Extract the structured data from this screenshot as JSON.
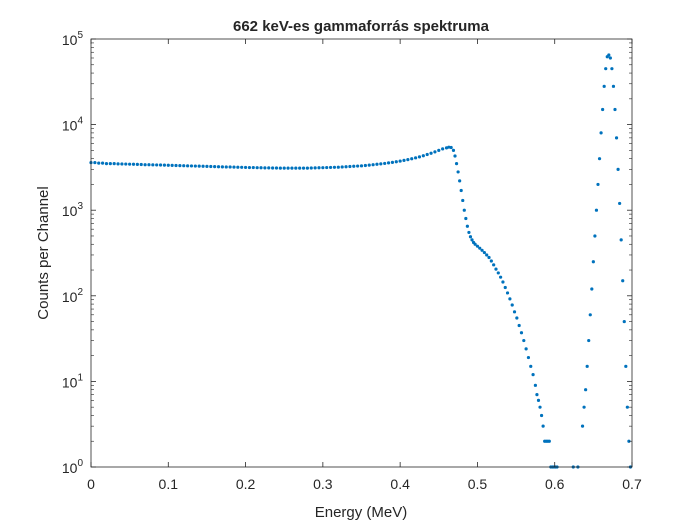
{
  "chart_data": {
    "type": "scatter",
    "title": "662 keV-es gammaforrás spektruma",
    "xlabel": "Energy (MeV)",
    "ylabel": "Counts per Channel",
    "xlim": [
      0,
      0.7
    ],
    "ylim": [
      1,
      100000
    ],
    "yscale": "log",
    "grid": false,
    "legend": "none",
    "x_ticks": [
      {
        "value": 0,
        "label": "0"
      },
      {
        "value": 0.1,
        "label": "0.1"
      },
      {
        "value": 0.2,
        "label": "0.2"
      },
      {
        "value": 0.3,
        "label": "0.3"
      },
      {
        "value": 0.4,
        "label": "0.4"
      },
      {
        "value": 0.5,
        "label": "0.5"
      },
      {
        "value": 0.6,
        "label": "0.6"
      },
      {
        "value": 0.7,
        "label": "0.7"
      }
    ],
    "y_ticks": [
      {
        "value": 1,
        "base": "10",
        "exp": "0"
      },
      {
        "value": 10,
        "base": "10",
        "exp": "1"
      },
      {
        "value": 100,
        "base": "10",
        "exp": "2"
      },
      {
        "value": 1000,
        "base": "10",
        "exp": "3"
      },
      {
        "value": 10000,
        "base": "10",
        "exp": "4"
      },
      {
        "value": 100000,
        "base": "10",
        "exp": "5"
      }
    ],
    "series": [
      {
        "color": "#0072BD",
        "points": [
          [
            0.0,
            3600
          ],
          [
            0.005,
            3600
          ],
          [
            0.01,
            3550
          ],
          [
            0.015,
            3550
          ],
          [
            0.02,
            3500
          ],
          [
            0.025,
            3500
          ],
          [
            0.03,
            3500
          ],
          [
            0.035,
            3480
          ],
          [
            0.04,
            3470
          ],
          [
            0.045,
            3460
          ],
          [
            0.05,
            3450
          ],
          [
            0.055,
            3440
          ],
          [
            0.06,
            3430
          ],
          [
            0.065,
            3420
          ],
          [
            0.07,
            3400
          ],
          [
            0.075,
            3400
          ],
          [
            0.08,
            3390
          ],
          [
            0.085,
            3380
          ],
          [
            0.09,
            3370
          ],
          [
            0.095,
            3360
          ],
          [
            0.1,
            3350
          ],
          [
            0.105,
            3340
          ],
          [
            0.11,
            3330
          ],
          [
            0.115,
            3320
          ],
          [
            0.12,
            3310
          ],
          [
            0.125,
            3300
          ],
          [
            0.13,
            3290
          ],
          [
            0.135,
            3280
          ],
          [
            0.14,
            3270
          ],
          [
            0.145,
            3260
          ],
          [
            0.15,
            3250
          ],
          [
            0.155,
            3240
          ],
          [
            0.16,
            3230
          ],
          [
            0.165,
            3220
          ],
          [
            0.17,
            3210
          ],
          [
            0.175,
            3200
          ],
          [
            0.18,
            3200
          ],
          [
            0.185,
            3190
          ],
          [
            0.19,
            3180
          ],
          [
            0.195,
            3170
          ],
          [
            0.2,
            3160
          ],
          [
            0.205,
            3150
          ],
          [
            0.21,
            3150
          ],
          [
            0.215,
            3140
          ],
          [
            0.22,
            3130
          ],
          [
            0.225,
            3120
          ],
          [
            0.23,
            3120
          ],
          [
            0.235,
            3110
          ],
          [
            0.24,
            3110
          ],
          [
            0.245,
            3100
          ],
          [
            0.25,
            3100
          ],
          [
            0.255,
            3100
          ],
          [
            0.26,
            3100
          ],
          [
            0.265,
            3100
          ],
          [
            0.27,
            3100
          ],
          [
            0.275,
            3100
          ],
          [
            0.28,
            3100
          ],
          [
            0.285,
            3110
          ],
          [
            0.29,
            3120
          ],
          [
            0.295,
            3130
          ],
          [
            0.3,
            3140
          ],
          [
            0.305,
            3150
          ],
          [
            0.31,
            3160
          ],
          [
            0.315,
            3170
          ],
          [
            0.32,
            3180
          ],
          [
            0.325,
            3200
          ],
          [
            0.33,
            3220
          ],
          [
            0.335,
            3240
          ],
          [
            0.34,
            3260
          ],
          [
            0.345,
            3280
          ],
          [
            0.35,
            3300
          ],
          [
            0.355,
            3330
          ],
          [
            0.36,
            3360
          ],
          [
            0.365,
            3400
          ],
          [
            0.37,
            3440
          ],
          [
            0.375,
            3480
          ],
          [
            0.38,
            3520
          ],
          [
            0.385,
            3570
          ],
          [
            0.39,
            3620
          ],
          [
            0.395,
            3680
          ],
          [
            0.4,
            3750
          ],
          [
            0.405,
            3820
          ],
          [
            0.41,
            3900
          ],
          [
            0.415,
            3990
          ],
          [
            0.42,
            4090
          ],
          [
            0.425,
            4200
          ],
          [
            0.43,
            4330
          ],
          [
            0.435,
            4470
          ],
          [
            0.44,
            4630
          ],
          [
            0.445,
            4800
          ],
          [
            0.45,
            5000
          ],
          [
            0.455,
            5200
          ],
          [
            0.46,
            5350
          ],
          [
            0.463,
            5450
          ],
          [
            0.466,
            5400
          ],
          [
            0.469,
            5000
          ],
          [
            0.471,
            4300
          ],
          [
            0.473,
            3500
          ],
          [
            0.475,
            2800
          ],
          [
            0.477,
            2200
          ],
          [
            0.479,
            1700
          ],
          [
            0.481,
            1300
          ],
          [
            0.483,
            1000
          ],
          [
            0.485,
            800
          ],
          [
            0.487,
            650
          ],
          [
            0.489,
            550
          ],
          [
            0.491,
            490
          ],
          [
            0.493,
            450
          ],
          [
            0.495,
            420
          ],
          [
            0.497,
            400
          ],
          [
            0.5,
            380
          ],
          [
            0.503,
            360
          ],
          [
            0.506,
            340
          ],
          [
            0.509,
            320
          ],
          [
            0.512,
            300
          ],
          [
            0.515,
            280
          ],
          [
            0.518,
            255
          ],
          [
            0.521,
            230
          ],
          [
            0.524,
            205
          ],
          [
            0.527,
            185
          ],
          [
            0.53,
            165
          ],
          [
            0.533,
            145
          ],
          [
            0.536,
            125
          ],
          [
            0.539,
            108
          ],
          [
            0.542,
            92
          ],
          [
            0.545,
            78
          ],
          [
            0.548,
            65
          ],
          [
            0.551,
            55
          ],
          [
            0.554,
            45
          ],
          [
            0.557,
            37
          ],
          [
            0.56,
            30
          ],
          [
            0.563,
            24
          ],
          [
            0.566,
            19
          ],
          [
            0.569,
            15
          ],
          [
            0.572,
            12
          ],
          [
            0.575,
            9
          ],
          [
            0.577,
            7
          ],
          [
            0.579,
            6
          ],
          [
            0.581,
            5
          ],
          [
            0.583,
            4
          ],
          [
            0.585,
            3
          ],
          [
            0.587,
            2
          ],
          [
            0.589,
            2
          ],
          [
            0.591,
            2
          ],
          [
            0.593,
            2
          ],
          [
            0.595,
            1
          ],
          [
            0.597,
            1
          ],
          [
            0.599,
            1
          ],
          [
            0.601,
            1
          ],
          [
            0.603,
            1
          ],
          [
            0.624,
            1
          ],
          [
            0.63,
            1
          ],
          [
            0.636,
            3
          ],
          [
            0.638,
            5
          ],
          [
            0.64,
            8
          ],
          [
            0.642,
            15
          ],
          [
            0.644,
            30
          ],
          [
            0.646,
            60
          ],
          [
            0.648,
            120
          ],
          [
            0.65,
            250
          ],
          [
            0.652,
            500
          ],
          [
            0.654,
            1000
          ],
          [
            0.656,
            2000
          ],
          [
            0.658,
            4000
          ],
          [
            0.66,
            8000
          ],
          [
            0.662,
            15000
          ],
          [
            0.664,
            28000
          ],
          [
            0.666,
            45000
          ],
          [
            0.668,
            62000
          ],
          [
            0.67,
            65000
          ],
          [
            0.672,
            60000
          ],
          [
            0.674,
            45000
          ],
          [
            0.676,
            28000
          ],
          [
            0.678,
            15000
          ],
          [
            0.68,
            7000
          ],
          [
            0.682,
            3000
          ],
          [
            0.684,
            1200
          ],
          [
            0.686,
            450
          ],
          [
            0.688,
            150
          ],
          [
            0.69,
            50
          ],
          [
            0.692,
            15
          ],
          [
            0.694,
            5
          ],
          [
            0.696,
            2
          ],
          [
            0.698,
            1
          ]
        ]
      }
    ]
  }
}
